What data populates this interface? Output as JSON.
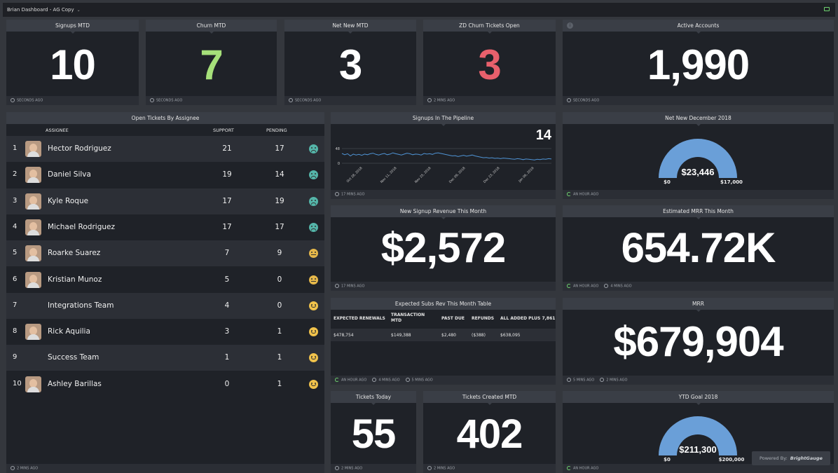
{
  "app": {
    "title": "Brian Dashboard - AG Copy"
  },
  "metrics": {
    "signups": {
      "title": "Signups MTD",
      "value": "10",
      "updated": "SECONDS AGO"
    },
    "churn": {
      "title": "Churn MTD",
      "value": "7",
      "updated": "SECONDS AGO",
      "color": "#a6e07a"
    },
    "netnew": {
      "title": "Net New MTD",
      "value": "3",
      "updated": "SECONDS AGO"
    },
    "zdchurn": {
      "title": "ZD Churn Tickets Open",
      "value": "3",
      "updated": "2 MINS AGO",
      "color": "#e8606c"
    },
    "active": {
      "title": "Active Accounts",
      "value": "1,990",
      "updated": "SECONDS AGO"
    }
  },
  "tickets": {
    "title": "Open Tickets By Assignee",
    "headers": {
      "assignee": "ASSIGNEE",
      "support": "SUPPORT",
      "pending": "PENDING"
    },
    "rows": [
      {
        "rank": "1",
        "name": "Hector Rodriguez",
        "support": "21",
        "pending": "17",
        "mood": "sad"
      },
      {
        "rank": "2",
        "name": "Daniel Silva",
        "support": "19",
        "pending": "14",
        "mood": "sad"
      },
      {
        "rank": "3",
        "name": "Kyle Roque",
        "support": "17",
        "pending": "19",
        "mood": "sad"
      },
      {
        "rank": "4",
        "name": "Michael Rodriguez",
        "support": "17",
        "pending": "17",
        "mood": "sad"
      },
      {
        "rank": "5",
        "name": "Roarke Suarez",
        "support": "7",
        "pending": "9",
        "mood": "meh"
      },
      {
        "rank": "6",
        "name": "Kristian Munoz",
        "support": "5",
        "pending": "0",
        "mood": "meh"
      },
      {
        "rank": "7",
        "name": "Integrations Team",
        "support": "4",
        "pending": "0",
        "mood": "happy"
      },
      {
        "rank": "8",
        "name": "Rick Aquilia",
        "support": "3",
        "pending": "1",
        "mood": "happy"
      },
      {
        "rank": "9",
        "name": "Success Team",
        "support": "1",
        "pending": "1",
        "mood": "happy"
      },
      {
        "rank": "10",
        "name": "Ashley Barillas",
        "support": "0",
        "pending": "1",
        "mood": "happy"
      }
    ],
    "updated": "2 MINS AGO"
  },
  "pipeline": {
    "title": "Signups In The Pipeline",
    "current": "14",
    "updated": "17 MINS AGO",
    "chart_data": {
      "type": "line",
      "ylim": [
        0,
        48
      ],
      "yticks": [
        "48",
        "0"
      ],
      "xticks": [
        "Oct 28, 2018",
        "Nov 11, 2018",
        "Nov 25, 2018",
        "Dec 09, 2018",
        "Dec 23, 2018",
        "Jan 06, 2019"
      ],
      "values": [
        32,
        28,
        31,
        24,
        30,
        27,
        29,
        26,
        30,
        28,
        31,
        33,
        29,
        27,
        30,
        32,
        28,
        30,
        34,
        31,
        29,
        27,
        30,
        33,
        31,
        28,
        30,
        29,
        27,
        32,
        30,
        31,
        29,
        33,
        34,
        32,
        30,
        28,
        26,
        24,
        25,
        22,
        24,
        26,
        23,
        25,
        27,
        24,
        22,
        20,
        18,
        19,
        17,
        18,
        16,
        17,
        15,
        17,
        16,
        15,
        14,
        13,
        15,
        14,
        12,
        14,
        13,
        12,
        11,
        13,
        12,
        14,
        13,
        15,
        14
      ]
    }
  },
  "netnewdec": {
    "title": "Net New December 2018",
    "updated": "AN HOUR AGO",
    "value_label": "$23,446",
    "min_label": "$0",
    "max_label": "$17,000",
    "fraction": 1.0,
    "color": "#6a9fd8"
  },
  "signuprev": {
    "title": "New Signup Revenue This Month",
    "value": "$2,572",
    "updated": "17 MINS AGO"
  },
  "estmrr": {
    "title": "Estimated MRR This Month",
    "value": "654.72K",
    "updated1": "AN HOUR AGO",
    "updated2": "4 MINS AGO"
  },
  "subs": {
    "title": "Expected Subs Rev This Month Table",
    "headers": [
      "EXPECTED RENEWALS",
      "TRANSACTION MTD",
      "PAST DUE",
      "REFUNDS",
      "ALL ADDED PLUS 7,861"
    ],
    "values": [
      "$478,754",
      "$149,388",
      "$2,480",
      "($388)",
      "$638,095"
    ],
    "updated1": "AN HOUR AGO",
    "updated2": "4 MINS AGO",
    "updated3": "5 MINS AGO"
  },
  "mrr": {
    "title": "MRR",
    "value": "$679,904",
    "updated1": "5 MINS AGO",
    "updated2": "2 MINS AGO"
  },
  "ticketstoday": {
    "title": "Tickets Today",
    "value": "55",
    "updated": "2 MINS AGO"
  },
  "ticketscreated": {
    "title": "Tickets Created MTD",
    "value": "402",
    "updated": "2 MINS AGO"
  },
  "ytd": {
    "title": "YTD Goal 2018",
    "updated": "AN HOUR AGO",
    "value_label": "$211,300",
    "min_label": "$0",
    "max_label": "$200,000",
    "fraction": 1.0,
    "color": "#6a9fd8"
  },
  "powered": {
    "label": "Powered By:",
    "brand": "BrightGauge"
  }
}
